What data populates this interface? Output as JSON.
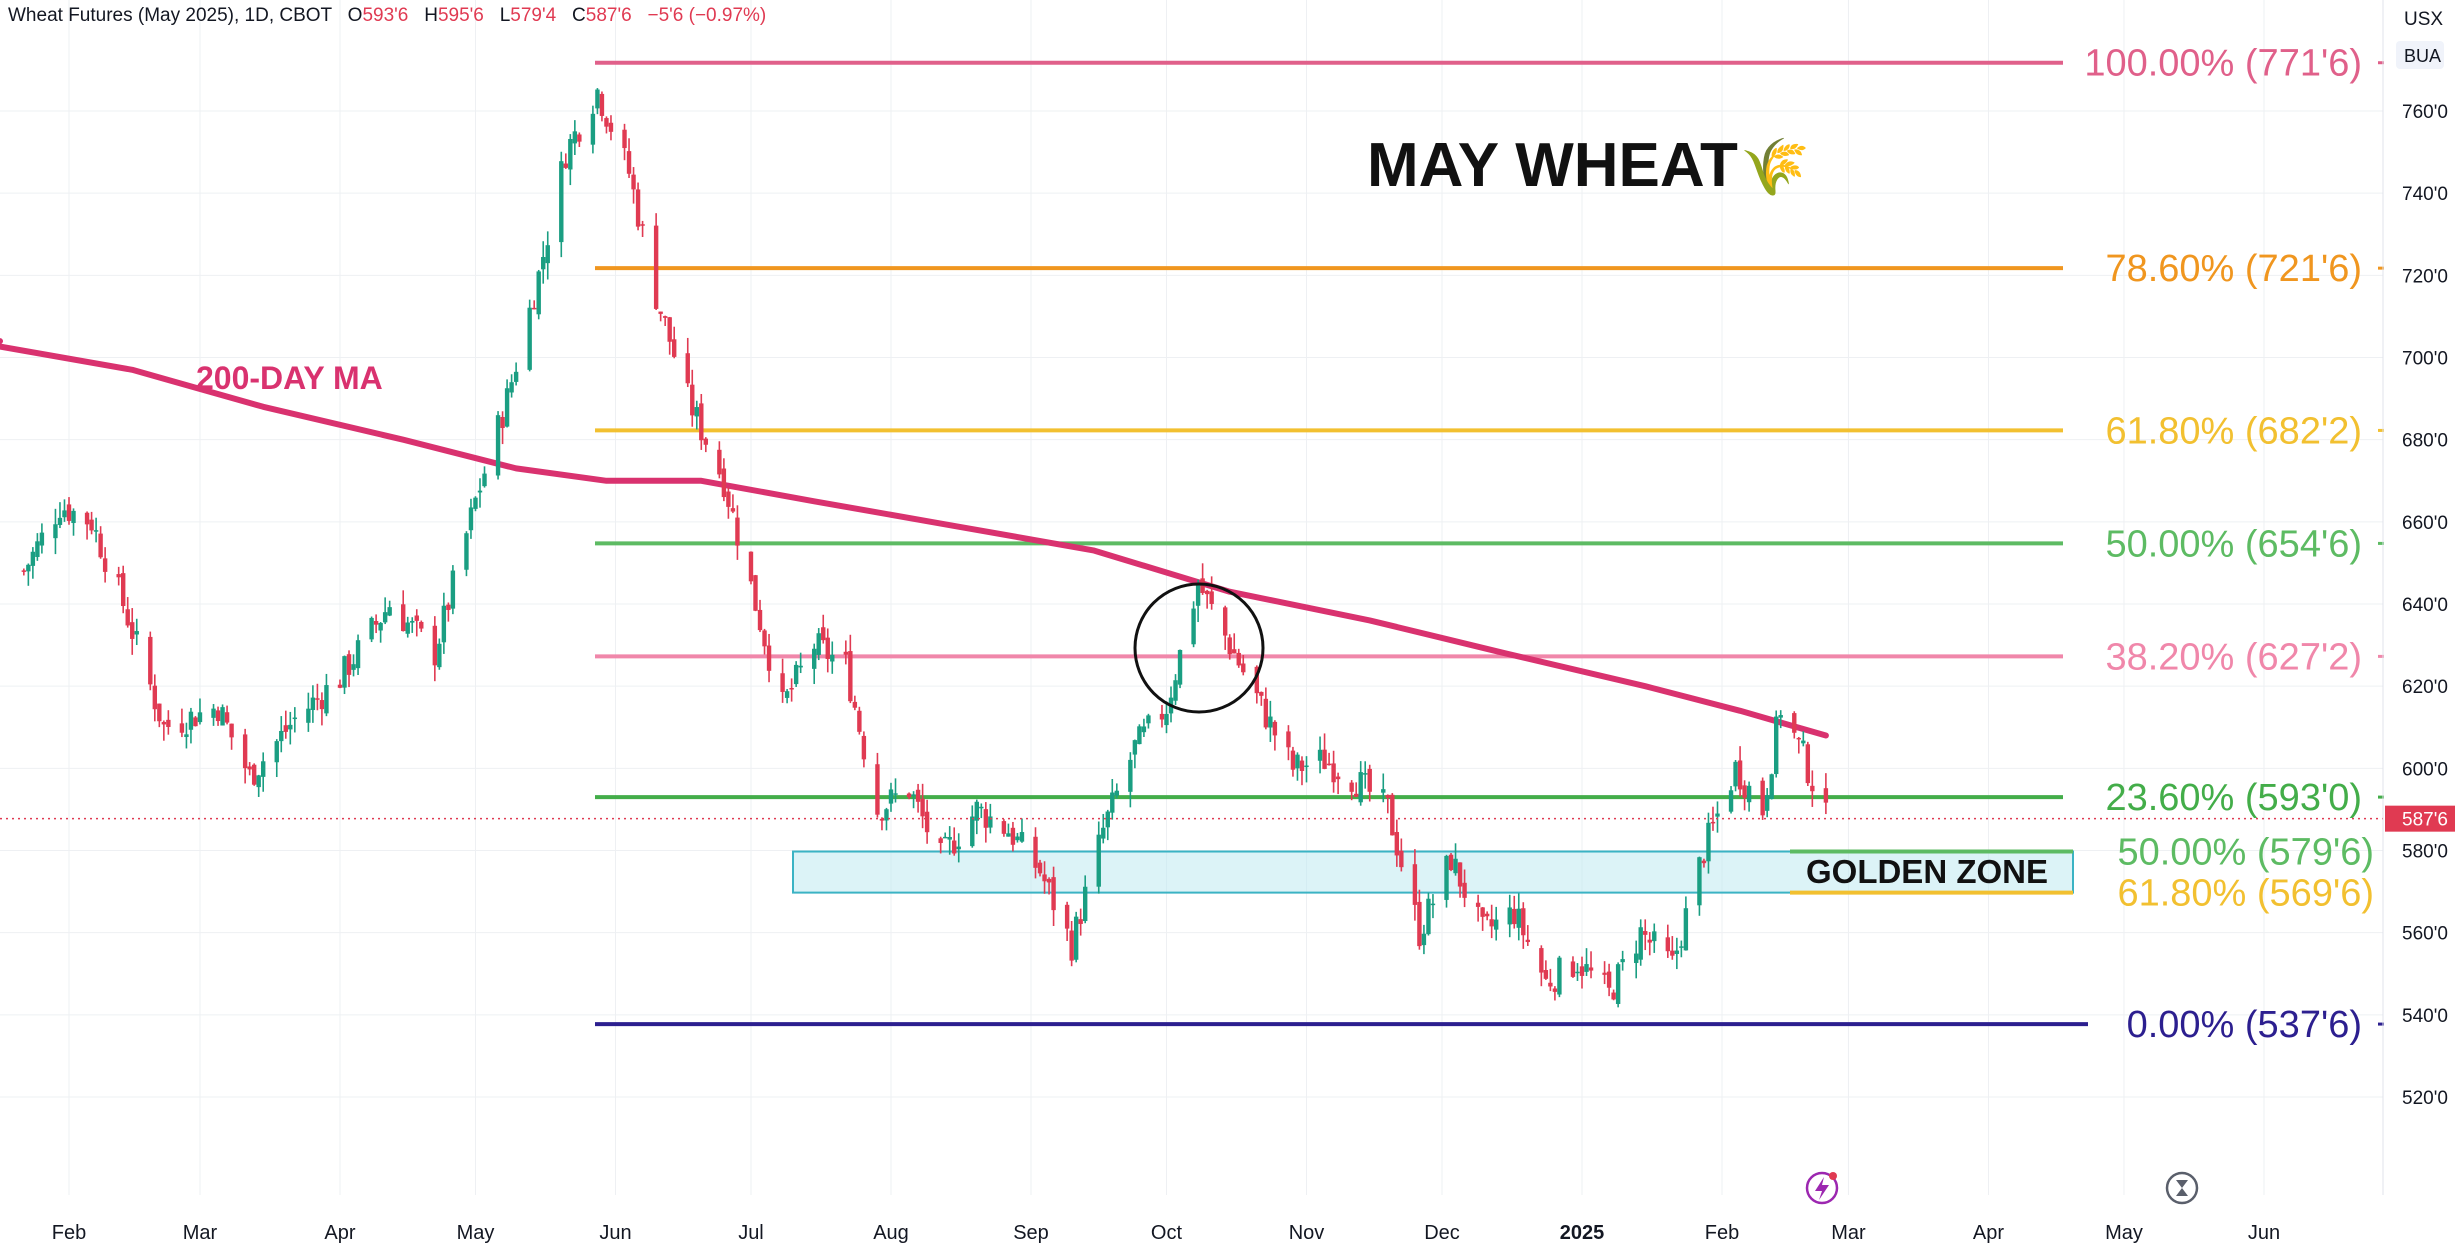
{
  "header": {
    "symbol": "Wheat Futures (May 2025), 1D, CBOT",
    "o_label": "O",
    "o_value": "593'6",
    "h_label": "H",
    "h_value": "595'6",
    "l_label": "L",
    "l_value": "579'4",
    "c_label": "C",
    "c_value": "587'6",
    "change": "−5'6 (−0.97%)"
  },
  "currency": "USX",
  "unit": "BUA",
  "colors": {
    "up": "#1a9e82",
    "down": "#e03a52",
    "ma": "#d9326f",
    "zone": "#bfeaf0",
    "zone_border": "#3bb3c4"
  },
  "chart_data": {
    "type": "candlestick",
    "title": "MAY WHEAT",
    "title_emoji": "🌾",
    "x_ticks": [
      "Feb",
      "Mar",
      "Apr",
      "May",
      "Jun",
      "Jul",
      "Aug",
      "Sep",
      "Oct",
      "Nov",
      "Dec",
      "2025",
      "Feb",
      "Mar",
      "Apr",
      "May",
      "Jun"
    ],
    "y_ticks": [
      "760'0",
      "740'0",
      "720'0",
      "700'0",
      "680'0",
      "660'0",
      "640'0",
      "620'0",
      "600'0",
      "580'0",
      "560'0",
      "540'0",
      "520'0"
    ],
    "y_range": [
      515,
      777
    ],
    "last_price_label": "587'6",
    "last_price": 587.75,
    "fib_levels": [
      {
        "label": "100.00% (771'6)",
        "value": 771.75,
        "color": "#e0608a"
      },
      {
        "label": "78.60% (721'6)",
        "value": 721.75,
        "color": "#f0961f"
      },
      {
        "label": "61.80% (682'2)",
        "value": 682.25,
        "color": "#f2c030"
      },
      {
        "label": "50.00% (654'6)",
        "value": 654.75,
        "color": "#5dbb63"
      },
      {
        "label": "38.20% (627'2)",
        "value": 627.25,
        "color": "#f087aa"
      },
      {
        "label": "23.60% (593'0)",
        "value": 593.0,
        "color": "#43ad49"
      },
      {
        "label": "0.00% (537'6)",
        "value": 537.75,
        "color": "#2c1f8f"
      }
    ],
    "golden_zone": {
      "label": "GOLDEN ZONE",
      "upper": {
        "label": "50.00% (579'6)",
        "value": 579.75,
        "color": "#5dbb63"
      },
      "lower": {
        "label": "61.80% (569'6)",
        "value": 569.75,
        "color": "#f2c030"
      }
    },
    "ma_label": "200-DAY MA",
    "ma_points": [
      {
        "date": "2024-01-15",
        "value": 703
      },
      {
        "date": "2024-02-15",
        "value": 697
      },
      {
        "date": "2024-03-15",
        "value": 688
      },
      {
        "date": "2024-04-15",
        "value": 680
      },
      {
        "date": "2024-05-10",
        "value": 673
      },
      {
        "date": "2024-05-30",
        "value": 670
      },
      {
        "date": "2024-06-20",
        "value": 670
      },
      {
        "date": "2024-07-15",
        "value": 665
      },
      {
        "date": "2024-08-15",
        "value": 659
      },
      {
        "date": "2024-09-15",
        "value": 653
      },
      {
        "date": "2024-10-15",
        "value": 643
      },
      {
        "date": "2024-11-15",
        "value": 636
      },
      {
        "date": "2024-12-15",
        "value": 628
      },
      {
        "date": "2025-01-15",
        "value": 620
      },
      {
        "date": "2025-02-05",
        "value": 614
      },
      {
        "date": "2025-02-24",
        "value": 608
      }
    ],
    "price_path": [
      {
        "date": "2024-01-22",
        "value": 648
      },
      {
        "date": "2024-01-30",
        "value": 664
      },
      {
        "date": "2024-02-06",
        "value": 660
      },
      {
        "date": "2024-02-13",
        "value": 640
      },
      {
        "date": "2024-02-22",
        "value": 610
      },
      {
        "date": "2024-03-05",
        "value": 615
      },
      {
        "date": "2024-03-12",
        "value": 598
      },
      {
        "date": "2024-03-22",
        "value": 612
      },
      {
        "date": "2024-04-01",
        "value": 622
      },
      {
        "date": "2024-04-12",
        "value": 640
      },
      {
        "date": "2024-04-22",
        "value": 628
      },
      {
        "date": "2024-05-01",
        "value": 665
      },
      {
        "date": "2024-05-08",
        "value": 690
      },
      {
        "date": "2024-05-15",
        "value": 720
      },
      {
        "date": "2024-05-21",
        "value": 750
      },
      {
        "date": "2024-05-28",
        "value": 765
      },
      {
        "date": "2024-06-04",
        "value": 745
      },
      {
        "date": "2024-06-10",
        "value": 715
      },
      {
        "date": "2024-06-17",
        "value": 690
      },
      {
        "date": "2024-06-25",
        "value": 670
      },
      {
        "date": "2024-07-02",
        "value": 640
      },
      {
        "date": "2024-07-08",
        "value": 615
      },
      {
        "date": "2024-07-15",
        "value": 630
      },
      {
        "date": "2024-07-22",
        "value": 625
      },
      {
        "date": "2024-07-29",
        "value": 590
      },
      {
        "date": "2024-08-05",
        "value": 595
      },
      {
        "date": "2024-08-12",
        "value": 578
      },
      {
        "date": "2024-08-20",
        "value": 590
      },
      {
        "date": "2024-08-27",
        "value": 585
      },
      {
        "date": "2024-09-03",
        "value": 575
      },
      {
        "date": "2024-09-10",
        "value": 557
      },
      {
        "date": "2024-09-17",
        "value": 585
      },
      {
        "date": "2024-09-24",
        "value": 605
      },
      {
        "date": "2024-10-01",
        "value": 615
      },
      {
        "date": "2024-10-08",
        "value": 645
      },
      {
        "date": "2024-10-15",
        "value": 630
      },
      {
        "date": "2024-10-22",
        "value": 615
      },
      {
        "date": "2024-10-29",
        "value": 600
      },
      {
        "date": "2024-11-05",
        "value": 602
      },
      {
        "date": "2024-11-12",
        "value": 597
      },
      {
        "date": "2024-11-19",
        "value": 590
      },
      {
        "date": "2024-11-26",
        "value": 560
      },
      {
        "date": "2024-12-03",
        "value": 578
      },
      {
        "date": "2024-12-10",
        "value": 560
      },
      {
        "date": "2024-12-17",
        "value": 565
      },
      {
        "date": "2024-12-24",
        "value": 548
      },
      {
        "date": "2024-12-31",
        "value": 553
      },
      {
        "date": "2025-01-07",
        "value": 545
      },
      {
        "date": "2025-01-14",
        "value": 560
      },
      {
        "date": "2025-01-21",
        "value": 552
      },
      {
        "date": "2025-01-28",
        "value": 580
      },
      {
        "date": "2025-02-04",
        "value": 600
      },
      {
        "date": "2025-02-10",
        "value": 590
      },
      {
        "date": "2025-02-14",
        "value": 615
      },
      {
        "date": "2025-02-19",
        "value": 603
      },
      {
        "date": "2025-02-24",
        "value": 587.75
      }
    ]
  }
}
